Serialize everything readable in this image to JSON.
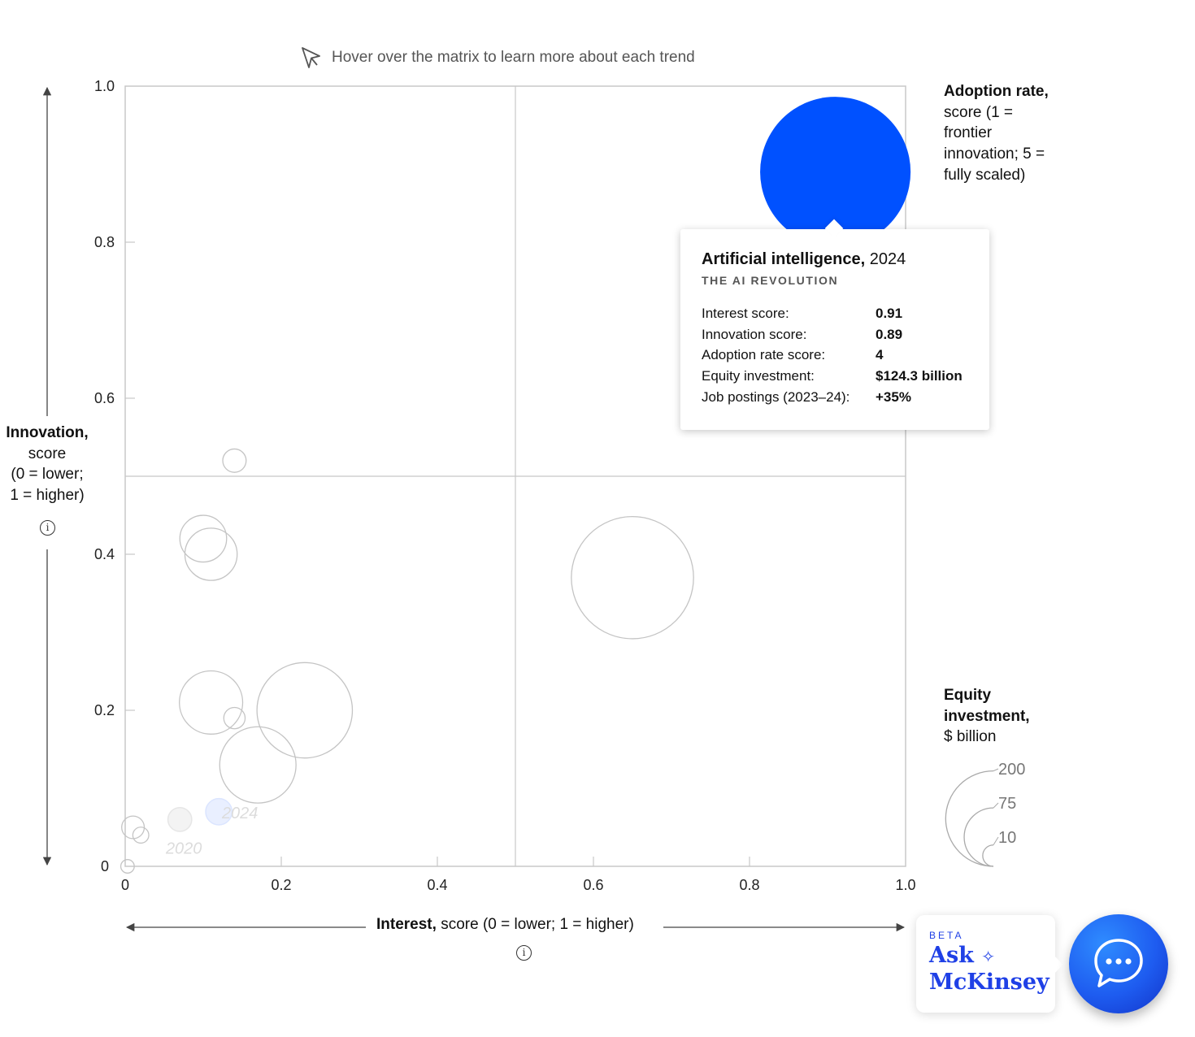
{
  "hint": {
    "text": "Hover over the matrix to learn more about each trend",
    "icon": "cursor-arrow-icon"
  },
  "y_axis_label": {
    "bold": "Innovation,",
    "rest": [
      "score",
      "(0 = lower;",
      "1 = higher)"
    ]
  },
  "x_axis_label": {
    "bold": "Interest,",
    "rest": " score (0 = lower; 1 = higher)"
  },
  "adoption_label": {
    "bold": "Adoption rate,",
    "rest": "score (1 = frontier innovation; 5 = fully scaled)"
  },
  "equity_label": {
    "bold": "Equity investment,",
    "rest": "$ billion"
  },
  "chart_data": {
    "type": "scatter",
    "xlim": [
      0,
      1
    ],
    "ylim": [
      0,
      1
    ],
    "x_ticks": [
      "0",
      "0.2",
      "0.4",
      "0.6",
      "0.8",
      "1.0"
    ],
    "y_ticks": [
      "0",
      "0.2",
      "0.4",
      "0.6",
      "0.8",
      "1.0"
    ],
    "quadrant_dividers": {
      "x": 0.5,
      "y": 0.5
    },
    "grid": false,
    "size_legend": {
      "values": [
        200,
        75,
        10
      ],
      "labels": [
        "200",
        "75",
        "10"
      ]
    },
    "points": [
      {
        "x": 0.91,
        "y": 0.89,
        "size": 124.3,
        "highlight": true
      },
      {
        "x": 0.14,
        "y": 0.52,
        "size": 3
      },
      {
        "x": 0.1,
        "y": 0.42,
        "size": 12
      },
      {
        "x": 0.11,
        "y": 0.4,
        "size": 15
      },
      {
        "x": 0.65,
        "y": 0.37,
        "size": 82
      },
      {
        "x": 0.11,
        "y": 0.21,
        "size": 22
      },
      {
        "x": 0.23,
        "y": 0.2,
        "size": 50
      },
      {
        "x": 0.14,
        "y": 0.19,
        "size": 2.5
      },
      {
        "x": 0.17,
        "y": 0.13,
        "size": 32
      },
      {
        "x": 0.01,
        "y": 0.05,
        "size": 2.8
      },
      {
        "x": 0.02,
        "y": 0.04,
        "size": 1.4
      },
      {
        "x": 0.003,
        "y": 0.0,
        "size": 1
      }
    ],
    "ai_trail": [
      {
        "x": 0.07,
        "y": 0.06,
        "size": 3.1,
        "label": "2020"
      },
      {
        "x": 0.12,
        "y": 0.07,
        "size": 3.8,
        "label": "2024"
      }
    ]
  },
  "tooltip": {
    "title": "Artificial intelligence,",
    "year": " 2024",
    "subtitle": "THE AI REVOLUTION",
    "rows": [
      {
        "label": "Interest score:",
        "value": "0.91"
      },
      {
        "label": "Innovation score:",
        "value": "0.89"
      },
      {
        "label": "Adoption rate score:",
        "value": "4"
      },
      {
        "label": "Equity investment:",
        "value": "$124.3 billion"
      },
      {
        "label": "Job postings (2023–24):",
        "value": "+35%"
      }
    ]
  },
  "ask_widget": {
    "beta": "BETA",
    "name_line1": "Ask",
    "name_line2": "McKinsey",
    "sparkle": "✧",
    "chat_icon": "chat-bubble-icon"
  },
  "colors": {
    "accent": "#0051ff",
    "bubble_stroke": "#c4c4c4",
    "axis": "#c8c8c8",
    "widget_blue": "#1f40e6"
  }
}
